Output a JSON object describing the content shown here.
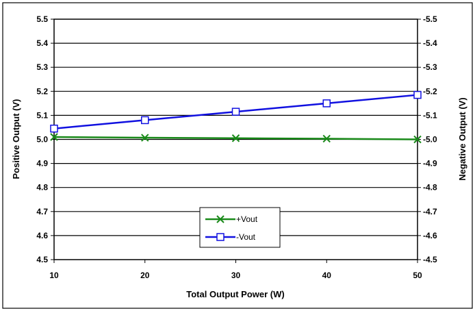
{
  "chart_data": {
    "type": "line",
    "x": [
      10,
      20,
      30,
      40,
      50
    ],
    "xlabel": "Total Output Power (W)",
    "xlim": [
      10,
      50
    ],
    "x_ticks": [
      "10",
      "20",
      "30",
      "40",
      "50"
    ],
    "ylabel_left": "Positive Output (V)",
    "ylim_left": [
      4.5,
      5.5
    ],
    "y_ticks_left": [
      "4.5",
      "4.6",
      "4.7",
      "4.8",
      "4.9",
      "5.0",
      "5.1",
      "5.2",
      "5.3",
      "5.4",
      "5.5"
    ],
    "ylabel_right": "Negative Output (V)",
    "ylim_right": [
      -4.5,
      -5.5
    ],
    "y_ticks_right": [
      "-4.5",
      "-4.6",
      "-4.7",
      "-4.8",
      "-4.9",
      "-5.0",
      "-5.1",
      "-5.2",
      "-5.3",
      "-5.4",
      "-5.5"
    ],
    "grid": "horizontal",
    "legend_position": "bottom-center",
    "series": [
      {
        "name": "+Vout",
        "axis": "left",
        "marker": "x",
        "color": "#1a8a1a",
        "values": [
          5.01,
          5.007,
          5.005,
          5.003,
          5.0
        ]
      },
      {
        "name": "-Vout",
        "axis": "right",
        "marker": "square",
        "color": "#1010e0",
        "values": [
          -5.045,
          -5.08,
          -5.115,
          -5.15,
          -5.185
        ]
      }
    ]
  }
}
